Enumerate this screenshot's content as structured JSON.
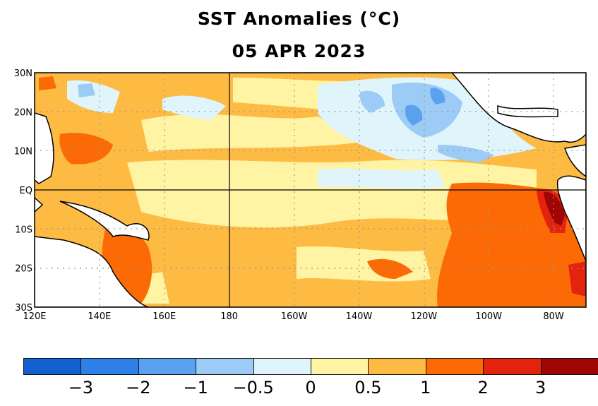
{
  "title": {
    "line1": "SST Anomalies (°C)",
    "line2": "05 APR 2023"
  },
  "map": {
    "lat_labels": [
      "30N",
      "20N",
      "10N",
      "EQ",
      "10S",
      "20S",
      "30S"
    ],
    "lon_labels": [
      "120E",
      "140E",
      "160E",
      "180",
      "160W",
      "140W",
      "120W",
      "100W",
      "80W"
    ],
    "lat_range": [
      -30,
      30
    ],
    "lon_range": [
      120,
      290
    ]
  },
  "colorbar": {
    "colors": [
      "#1560d0",
      "#2f7fe8",
      "#5aa2ef",
      "#9ccbf5",
      "#dff4fb",
      "#fff3a4",
      "#fdbb43",
      "#fc6a05",
      "#e3230d",
      "#a00505"
    ],
    "labels": [
      "−3",
      "−2",
      "−1",
      "−0.5",
      "0",
      "0.5",
      "1",
      "2",
      "3"
    ]
  }
}
